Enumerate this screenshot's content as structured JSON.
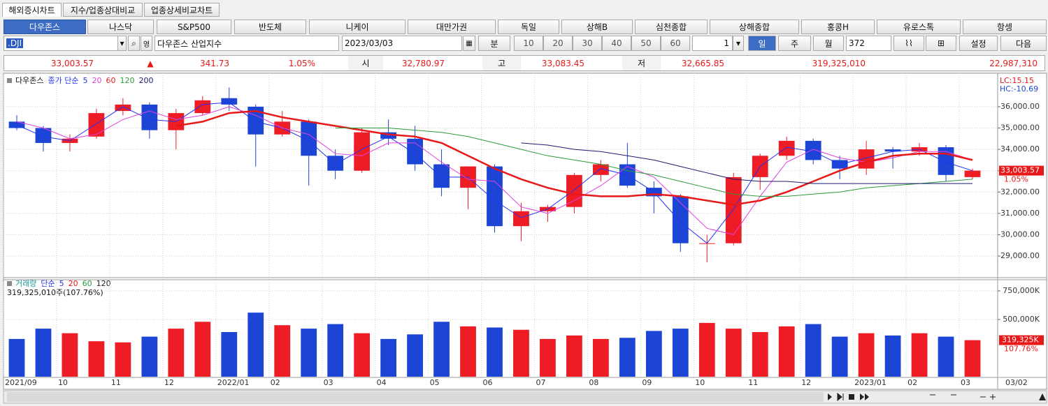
{
  "tabs": [
    "해외증시차트",
    "지수/업종상대비교",
    "업종상세비교차트"
  ],
  "markets": [
    "다우존스",
    "나스닥",
    "S&P500",
    "반도체",
    "니케이",
    "대만가권",
    "독일",
    "상해B",
    "심천종합",
    "상해종합",
    "홍콩H",
    "유로스톡",
    "항셍"
  ],
  "toolbar": {
    "symbol": ".DJI",
    "lang": "영",
    "name": "다우존스 산업지수",
    "date": "2023/03/03",
    "unit": "분",
    "minutes": [
      "10",
      "20",
      "30",
      "40",
      "50",
      "60"
    ],
    "count_select": "1",
    "periods": [
      "일",
      "주",
      "월"
    ],
    "count": "372",
    "settings": "설정",
    "next": "다음"
  },
  "quote": {
    "last": "33,003.57",
    "arrow": "▲",
    "change": "341.73",
    "rate": "1.05%",
    "open_label": "시",
    "open": "32,780.97",
    "high_label": "고",
    "high": "33,083.45",
    "low_label": "저",
    "low": "32,665.85",
    "volume": "319,325,010",
    "amount": "22,987,310"
  },
  "chart_data": [
    {
      "type": "candlestick",
      "title": "다우존스",
      "legend_prefix": "종가 단순",
      "open": [
        35300,
        35000,
        34300,
        34600,
        35800,
        36100,
        34900,
        35700,
        36400,
        36000,
        34700,
        35300,
        33700,
        33000,
        34800,
        34500,
        33300,
        32200,
        33200,
        30400,
        31100,
        31300,
        32800,
        33300,
        32200,
        31800,
        29600,
        29600,
        32700,
        33700,
        34400,
        33500,
        33100,
        34000,
        33900,
        34100,
        32700
      ],
      "high": [
        35600,
        35100,
        34700,
        35900,
        36400,
        36200,
        35900,
        36500,
        36900,
        36100,
        35800,
        35400,
        34000,
        35000,
        35400,
        35100,
        34000,
        33200,
        33300,
        31500,
        31400,
        32900,
        33500,
        34300,
        32500,
        31900,
        30000,
        32900,
        33800,
        34600,
        34500,
        33700,
        34400,
        34100,
        34300,
        34200,
        33100
      ],
      "low": [
        34900,
        33900,
        33900,
        34500,
        35600,
        34500,
        34000,
        35600,
        35800,
        33200,
        34600,
        32300,
        32600,
        32900,
        34200,
        33000,
        31800,
        31200,
        30100,
        29700,
        30600,
        31000,
        32500,
        32200,
        31000,
        29200,
        28700,
        29500,
        32100,
        33500,
        33300,
        32600,
        32800,
        33100,
        33700,
        32500,
        32600
      ],
      "close": [
        35000,
        34300,
        34500,
        35700,
        36100,
        34900,
        35700,
        36300,
        36100,
        34700,
        35300,
        33700,
        33000,
        34800,
        34500,
        33300,
        32200,
        33200,
        30400,
        31100,
        31300,
        32800,
        33300,
        32300,
        31800,
        29600,
        29600,
        32700,
        33700,
        34400,
        33500,
        33100,
        34000,
        33900,
        34100,
        32800,
        33003.57
      ],
      "up_color": "#ee1c25",
      "down_color": "#1c45d6",
      "lines": [
        {
          "name": "5",
          "color": "#2233ee",
          "values": [
            35150,
            34600,
            34400,
            35200,
            36000,
            35400,
            35300,
            36100,
            36200,
            35300,
            35000,
            34400,
            33300,
            34000,
            34600,
            33800,
            32700,
            32700,
            31600,
            30800,
            31200,
            32100,
            33100,
            32800,
            32000,
            30600,
            29600,
            31200,
            33200,
            34100,
            33900,
            33300,
            33600,
            33900,
            34000,
            33400,
            33000
          ]
        },
        {
          "name": "20",
          "color": "#e040e0",
          "values": [
            35300,
            35000,
            34500,
            34700,
            35400,
            35800,
            35400,
            35600,
            36000,
            35600,
            35000,
            34700,
            33800,
            33700,
            34300,
            34300,
            33400,
            32600,
            32500,
            31300,
            31000,
            31600,
            32300,
            33200,
            32700,
            31500,
            30300,
            30000,
            31800,
            33400,
            34000,
            33600,
            33400,
            33600,
            33900,
            33900,
            33500
          ]
        },
        {
          "name": "60",
          "color": "#e81818",
          "values": [
            null,
            null,
            null,
            null,
            null,
            null,
            35100,
            35300,
            35700,
            35800,
            35500,
            35300,
            35100,
            34900,
            34700,
            34600,
            34300,
            33700,
            33100,
            32600,
            32200,
            31900,
            31800,
            31800,
            31900,
            31800,
            31600,
            31400,
            31600,
            32000,
            32500,
            33000,
            33400,
            33700,
            33800,
            33800,
            33500
          ]
        },
        {
          "name": "120",
          "color": "#2a9a3a",
          "values": [
            null,
            null,
            null,
            null,
            null,
            null,
            null,
            null,
            null,
            null,
            null,
            null,
            35000,
            35000,
            35000,
            34900,
            34800,
            34600,
            34300,
            34000,
            33700,
            33500,
            33300,
            33000,
            32800,
            32500,
            32200,
            31900,
            31800,
            31800,
            31900,
            32000,
            32200,
            32300,
            32400,
            32500,
            32600
          ]
        },
        {
          "name": "200",
          "color": "#1a1a6e",
          "values": [
            null,
            null,
            null,
            null,
            null,
            null,
            null,
            null,
            null,
            null,
            null,
            null,
            null,
            null,
            null,
            null,
            null,
            null,
            null,
            34300,
            34200,
            34000,
            33900,
            33700,
            33500,
            33200,
            32900,
            32600,
            32500,
            32500,
            32400,
            32400,
            32400,
            32400,
            32400,
            32400,
            32400
          ]
        }
      ],
      "ylim": [
        28020,
        37470
      ],
      "yticks": [
        {
          "value": 29000,
          "label": "29,000.00"
        },
        {
          "value": 30000,
          "label": "30,000.00"
        },
        {
          "value": 31000,
          "label": "31,000.00"
        },
        {
          "value": 32000,
          "label": "32,000.00"
        },
        {
          "value": 33000,
          "label": "33,000.00"
        },
        {
          "value": 34000,
          "label": "34,000.00"
        },
        {
          "value": 35000,
          "label": "35,000.00"
        },
        {
          "value": 36000,
          "label": "36,000.00"
        }
      ],
      "grid": true,
      "last_label": "33,003.57",
      "change_label": "1.05%",
      "lc_label": "LC:15.15",
      "hc_label": "HC:-10.69"
    },
    {
      "type": "bar",
      "title": "거래량",
      "legend_prefix": "단순",
      "ma_legend": [
        {
          "name": "5",
          "color": "#2233ee"
        },
        {
          "name": "20",
          "color": "#e81818"
        },
        {
          "name": "60",
          "color": "#2a9a3a"
        },
        {
          "name": "120",
          "color": "#222222"
        }
      ],
      "summary": "319,325,010주(107.76%)",
      "categories": [
        "2021/09",
        null,
        "10",
        null,
        "11",
        null,
        "12",
        null,
        "2022/01",
        null,
        "02",
        null,
        "03",
        null,
        "04",
        null,
        "05",
        null,
        "06",
        null,
        "07",
        null,
        "08",
        null,
        "09",
        null,
        "10",
        null,
        "11",
        null,
        "12",
        null,
        "2023/01",
        null,
        "02",
        null,
        "03"
      ],
      "values": [
        330000,
        420000,
        380000,
        310000,
        300000,
        350000,
        420000,
        480000,
        390000,
        560000,
        450000,
        420000,
        460000,
        380000,
        330000,
        370000,
        480000,
        440000,
        430000,
        410000,
        330000,
        360000,
        330000,
        340000,
        400000,
        420000,
        470000,
        420000,
        390000,
        440000,
        460000,
        350000,
        380000,
        360000,
        380000,
        350000,
        319325
      ],
      "ylim": [
        0,
        823000
      ],
      "yticks": [
        {
          "value": 500000,
          "label": "500,000K"
        },
        {
          "value": 750000,
          "label": "750,000K"
        }
      ],
      "grid": true,
      "last_label": "319,325K",
      "ratio_label": "107.76%",
      "end_label": "03/02"
    }
  ]
}
